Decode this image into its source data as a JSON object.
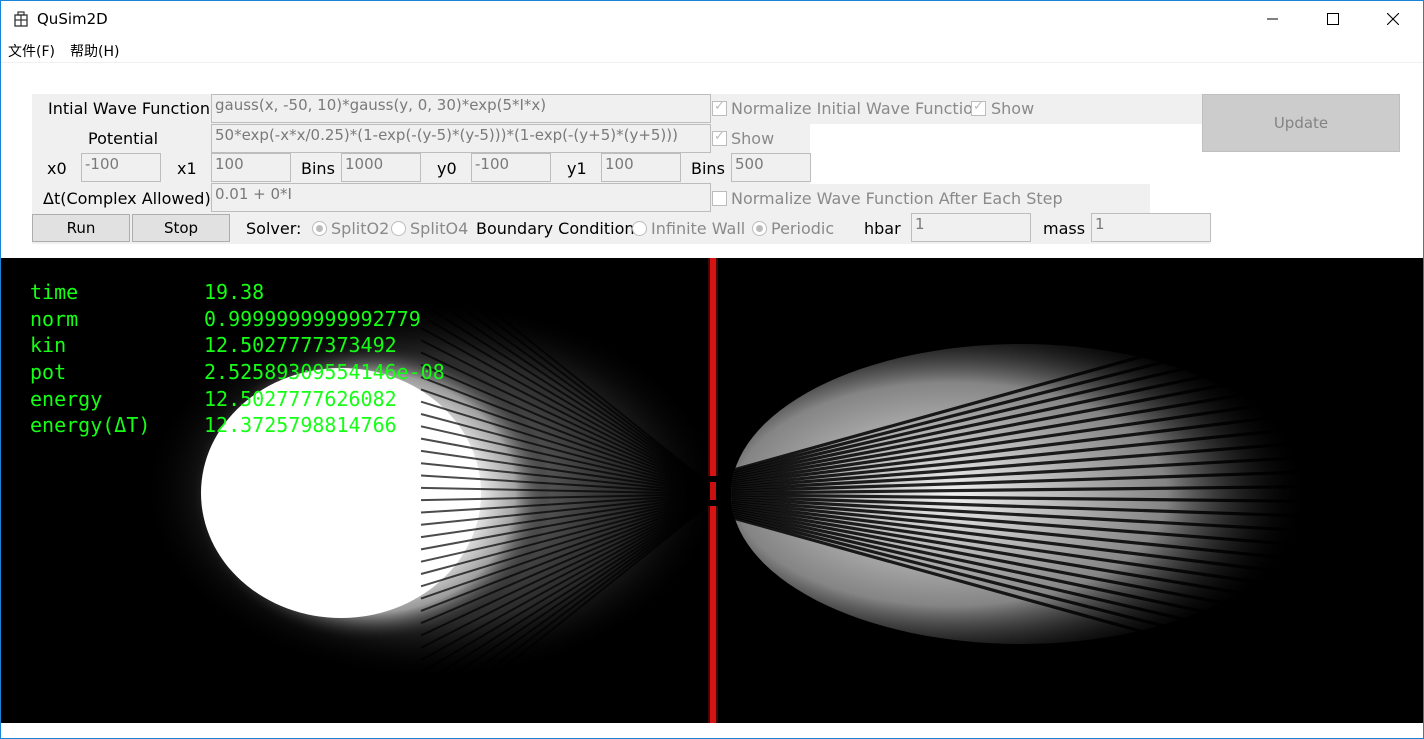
{
  "window": {
    "title": "QuSim2D"
  },
  "menu": {
    "file": "文件(F)",
    "help": "帮助(H)"
  },
  "controls": {
    "initial_wave_label": "Intial Wave Function",
    "initial_wave_value": "gauss(x, -50, 10)*gauss(y, 0, 30)*exp(5*I*x)",
    "normalize_initial_label": "Normalize Initial Wave Function",
    "normalize_initial_checked": true,
    "show_wave_label": "Show",
    "show_wave_checked": true,
    "potential_label": "Potential",
    "potential_value": "50*exp(-x*x/0.25)*(1-exp(-(y-5)*(y-5)))*(1-exp(-(y+5)*(y+5)))",
    "show_potential_label": "Show",
    "show_potential_checked": true,
    "update_label": "Update",
    "x0_label": "x0",
    "x0_value": "-100",
    "x1_label": "x1",
    "x1_value": "100",
    "xbins_label": "Bins",
    "xbins_value": "1000",
    "y0_label": "y0",
    "y0_value": "-100",
    "y1_label": "y1",
    "y1_value": "100",
    "ybins_label": "Bins",
    "ybins_value": "500",
    "dt_label": "Δt(Complex Allowed)",
    "dt_value": "0.01 + 0*I",
    "normalize_each_label": "Normalize Wave Function After Each Step",
    "normalize_each_checked": false,
    "run_label": "Run",
    "stop_label": "Stop",
    "solver_label": "Solver:",
    "solver_o2": "SplitO2",
    "solver_o4": "SplitO4",
    "solver_selected": "SplitO2",
    "boundary_label": "Boundary Condition:",
    "boundary_wall": "Infinite Wall",
    "boundary_periodic": "Periodic",
    "boundary_selected": "Periodic",
    "hbar_label": "hbar",
    "hbar_value": "1",
    "mass_label": "mass",
    "mass_value": "1"
  },
  "readout": {
    "time_label": "time",
    "time": "19.38",
    "norm_label": "norm",
    "norm": "0.9999999999992779",
    "kin_label": "kin",
    "kin": "12.5027777373492",
    "pot_label": "pot",
    "pot": "2.52589309554146e-08",
    "energy_label": "energy",
    "energy": "12.5027777626082",
    "energy_dt_label": "energy(ΔT)",
    "energy_dt": "12.3725798814766"
  },
  "colors": {
    "readout": "#15ff15",
    "barrier": "#d01010",
    "canvas_bg": "#000000"
  }
}
